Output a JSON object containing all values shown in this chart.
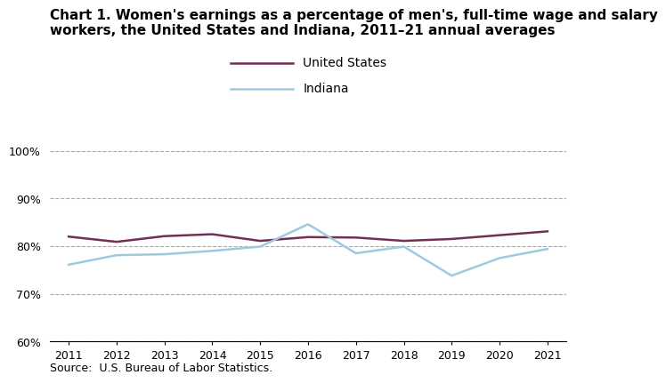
{
  "title_line1": "Chart 1. Women's earnings as a percentage of men's, full-time wage and salary",
  "title_line2": "workers, the United States and Indiana, 2011–21 annual averages",
  "years": [
    2011,
    2012,
    2013,
    2014,
    2015,
    2016,
    2017,
    2018,
    2019,
    2020,
    2021
  ],
  "us_values": [
    82.0,
    80.9,
    82.1,
    82.5,
    81.1,
    81.9,
    81.8,
    81.1,
    81.5,
    82.3,
    83.1
  ],
  "indiana_values": [
    76.1,
    78.1,
    78.3,
    79.0,
    79.9,
    84.6,
    78.5,
    79.9,
    73.8,
    77.5,
    79.4
  ],
  "us_color": "#722F54",
  "indiana_color": "#9ECAE1",
  "us_label": "United States",
  "indiana_label": "Indiana",
  "ylim": [
    60,
    102
  ],
  "yticks": [
    60,
    70,
    80,
    90,
    100
  ],
  "xlim_min": 2010.6,
  "xlim_max": 2021.4,
  "source_text": "Source:  U.S. Bureau of Labor Statistics.",
  "line_width": 1.8,
  "background_color": "#ffffff",
  "grid_color": "#aaaaaa",
  "title_fontsize": 11,
  "tick_fontsize": 9,
  "legend_fontsize": 10,
  "source_fontsize": 9
}
